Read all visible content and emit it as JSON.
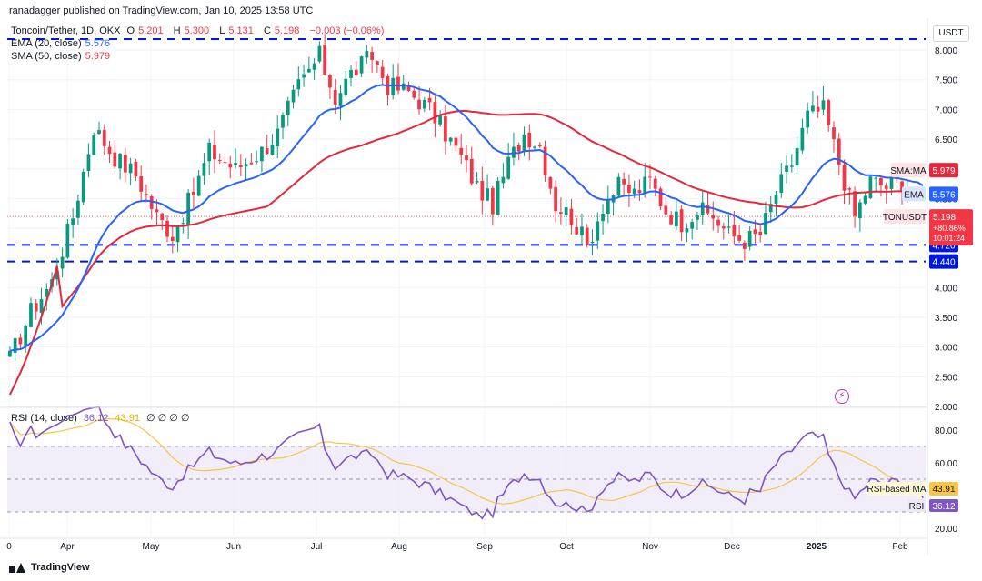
{
  "header": {
    "published": "ranadagger published on TradingView.com, Jan 10, 2025 13:58 UTC",
    "symbol": "Toncoin/Tether, 1D, OKX",
    "ohlc": {
      "o_label": "O",
      "o": "5.201",
      "h_label": "H",
      "h": "5.300",
      "l_label": "L",
      "l": "5.131",
      "c_label": "C",
      "c": "5.198",
      "change": "−0.003 (−0.06%)"
    },
    "ema": {
      "label": "EMA (20, close)",
      "value": "5.576"
    },
    "sma": {
      "label": "SMA (50, close)",
      "value": "5.979"
    }
  },
  "rsi_header": {
    "label": "RSI (14, close)",
    "rsi": "36.12",
    "ma": "43.91",
    "tail": "∅ ∅ ∅ ∅"
  },
  "currency": "USDT",
  "footer": {
    "brand": "TradingView"
  },
  "colors": {
    "up": "#089981",
    "down": "#f23645",
    "ema": "#2962ff",
    "sma": "#e5283c",
    "rsi": "#7e57c2",
    "rsi_ma": "#f7c548",
    "level": "#0018d9",
    "rsi_band": "#ede7f6"
  },
  "chart_data": [
    {
      "type": "candlestick",
      "title": "Toncoin/Tether, 1D, OKX",
      "ylim": [
        2.0,
        8.2
      ],
      "y_ticks": [
        "8.000",
        "7.500",
        "7.000",
        "6.500",
        "6.000",
        "5.500",
        "5.000",
        "4.500",
        "4.000",
        "3.500",
        "3.000",
        "2.500",
        "2.000"
      ],
      "x_tick_labels": [
        "0",
        "Apr",
        "May",
        "Jun",
        "Jul",
        "Aug",
        "Sep",
        "Oct",
        "Nov",
        "Dec",
        "2025",
        "Feb"
      ],
      "horizontal_levels": [
        {
          "value": 8.3,
          "label": ""
        },
        {
          "value": 4.72,
          "label": "4.720"
        },
        {
          "value": 4.44,
          "label": "4.440"
        }
      ],
      "last": {
        "label": "TONUSDT",
        "value": "5.198",
        "change": "+80.86%",
        "countdown": "10:01:24"
      },
      "ema": {
        "label": "EMA",
        "value": "5.576"
      },
      "sma": {
        "label": "SMA:MA",
        "value": "5.979"
      },
      "waypoints_close": [
        [
          0,
          2.8
        ],
        [
          4,
          3.6
        ],
        [
          8,
          4.1
        ],
        [
          12,
          5.2
        ],
        [
          16,
          6.7
        ],
        [
          20,
          6.2
        ],
        [
          24,
          5.9
        ],
        [
          28,
          5.2
        ],
        [
          31,
          4.9
        ],
        [
          35,
          5.6
        ],
        [
          38,
          6.3
        ],
        [
          43,
          6.0
        ],
        [
          48,
          6.3
        ],
        [
          51,
          6.6
        ],
        [
          55,
          7.4
        ],
        [
          59,
          7.9
        ],
        [
          62,
          7.2
        ],
        [
          65,
          7.6
        ],
        [
          69,
          7.9
        ],
        [
          72,
          7.4
        ],
        [
          76,
          7.3
        ],
        [
          80,
          7.0
        ],
        [
          83,
          6.6
        ],
        [
          86,
          6.2
        ],
        [
          89,
          5.7
        ],
        [
          92,
          5.4
        ],
        [
          95,
          6.1
        ],
        [
          98,
          6.6
        ],
        [
          101,
          6.4
        ],
        [
          104,
          5.4
        ],
        [
          107,
          5.2
        ],
        [
          110,
          4.7
        ],
        [
          113,
          5.4
        ],
        [
          116,
          5.7
        ],
        [
          119,
          5.6
        ],
        [
          122,
          5.8
        ],
        [
          125,
          5.3
        ],
        [
          128,
          5.1
        ],
        [
          131,
          5.3
        ],
        [
          134,
          5.2
        ],
        [
          137,
          4.9
        ],
        [
          140,
          4.8
        ],
        [
          143,
          4.9
        ],
        [
          146,
          5.6
        ],
        [
          149,
          6.1
        ],
        [
          152,
          6.9
        ],
        [
          155,
          7.0
        ],
        [
          158,
          6.1
        ],
        [
          161,
          5.2
        ],
        [
          164,
          5.8
        ],
        [
          167,
          5.7
        ],
        [
          170,
          5.8
        ],
        [
          173,
          5.5
        ],
        [
          174,
          5.2
        ]
      ]
    },
    {
      "type": "line",
      "title": "RSI (14, close)",
      "ylim": [
        15,
        90
      ],
      "y_ticks": [
        "80.00",
        "60.00",
        "20.00"
      ],
      "bands": {
        "upper": 70,
        "middle": 50,
        "lower": 30
      },
      "series": [
        {
          "name": "RSI",
          "last": "36.12"
        },
        {
          "name": "RSI-based MA",
          "last": "43.91"
        }
      ]
    }
  ]
}
